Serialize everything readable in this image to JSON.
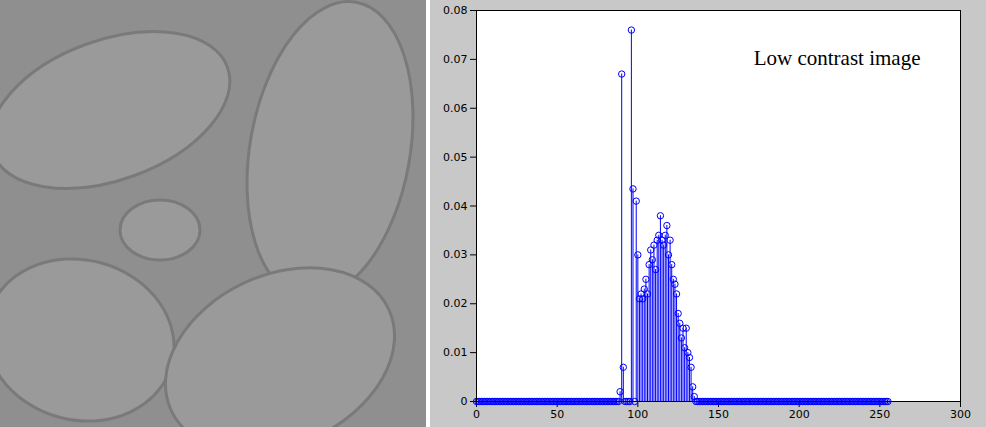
{
  "chart_data": {
    "type": "stem",
    "marker": "circle",
    "color": "#0000ff",
    "grid": false,
    "annotations": [
      {
        "text": "Low contrast image"
      }
    ],
    "xlim": [
      0,
      300
    ],
    "xticks": [
      0,
      50,
      100,
      150,
      200,
      250,
      300
    ],
    "ylim": [
      0,
      0.08
    ],
    "yticks": [
      0,
      0.01,
      0.02,
      0.03,
      0.04,
      0.05,
      0.06,
      0.07,
      0.08
    ],
    "x": [
      0,
      1,
      2,
      3,
      4,
      5,
      6,
      7,
      8,
      9,
      10,
      11,
      12,
      13,
      14,
      15,
      16,
      17,
      18,
      19,
      20,
      21,
      22,
      23,
      24,
      25,
      26,
      27,
      28,
      29,
      30,
      31,
      32,
      33,
      34,
      35,
      36,
      37,
      38,
      39,
      40,
      41,
      42,
      43,
      44,
      45,
      46,
      47,
      48,
      49,
      50,
      51,
      52,
      53,
      54,
      55,
      56,
      57,
      58,
      59,
      60,
      61,
      62,
      63,
      64,
      65,
      66,
      67,
      68,
      69,
      70,
      71,
      72,
      73,
      74,
      75,
      76,
      77,
      78,
      79,
      80,
      81,
      82,
      83,
      84,
      85,
      86,
      87,
      88,
      89,
      90,
      91,
      92,
      93,
      94,
      95,
      96,
      97,
      98,
      99,
      100,
      101,
      102,
      103,
      104,
      105,
      106,
      107,
      108,
      109,
      110,
      111,
      112,
      113,
      114,
      115,
      116,
      117,
      118,
      119,
      120,
      121,
      122,
      123,
      124,
      125,
      126,
      127,
      128,
      129,
      130,
      131,
      132,
      133,
      134,
      135,
      136,
      137,
      138,
      139,
      140,
      141,
      142,
      143,
      144,
      145,
      146,
      147,
      148,
      149,
      150,
      151,
      152,
      153,
      154,
      155,
      156,
      157,
      158,
      159,
      160,
      161,
      162,
      163,
      164,
      165,
      166,
      167,
      168,
      169,
      170,
      171,
      172,
      173,
      174,
      175,
      176,
      177,
      178,
      179,
      180,
      181,
      182,
      183,
      184,
      185,
      186,
      187,
      188,
      189,
      190,
      191,
      192,
      193,
      194,
      195,
      196,
      197,
      198,
      199,
      200,
      201,
      202,
      203,
      204,
      205,
      206,
      207,
      208,
      209,
      210,
      211,
      212,
      213,
      214,
      215,
      216,
      217,
      218,
      219,
      220,
      221,
      222,
      223,
      224,
      225,
      226,
      227,
      228,
      229,
      230,
      231,
      232,
      233,
      234,
      235,
      236,
      237,
      238,
      239,
      240,
      241,
      242,
      243,
      244,
      245,
      246,
      247,
      248,
      249,
      250,
      251,
      252,
      253,
      254,
      255
    ],
    "values": [
      0,
      0,
      0,
      0,
      0,
      0,
      0,
      0,
      0,
      0,
      0,
      0,
      0,
      0,
      0,
      0,
      0,
      0,
      0,
      0,
      0,
      0,
      0,
      0,
      0,
      0,
      0,
      0,
      0,
      0,
      0,
      0,
      0,
      0,
      0,
      0,
      0,
      0,
      0,
      0,
      0,
      0,
      0,
      0,
      0,
      0,
      0,
      0,
      0,
      0,
      0,
      0,
      0,
      0,
      0,
      0,
      0,
      0,
      0,
      0,
      0,
      0,
      0,
      0,
      0,
      0,
      0,
      0,
      0,
      0,
      0,
      0,
      0,
      0,
      0,
      0,
      0,
      0,
      0,
      0,
      0,
      0,
      0,
      0,
      0,
      0,
      0,
      0,
      0,
      0.002,
      0.067,
      0.007,
      0,
      0,
      0,
      0,
      0.076,
      0.0435,
      0,
      0.041,
      0.03,
      0.021,
      0.022,
      0.021,
      0.023,
      0.025,
      0.022,
      0.028,
      0.031,
      0.029,
      0.032,
      0.027,
      0.033,
      0.034,
      0.038,
      0.033,
      0.032,
      0.034,
      0.036,
      0.03,
      0.033,
      0.028,
      0.025,
      0.024,
      0.022,
      0.018,
      0.016,
      0.013,
      0.015,
      0.011,
      0.015,
      0.01,
      0.009,
      0.007,
      0.003,
      0.001,
      0,
      0,
      0,
      0,
      0,
      0,
      0,
      0,
      0,
      0,
      0,
      0,
      0,
      0,
      0,
      0,
      0,
      0,
      0,
      0,
      0,
      0,
      0,
      0,
      0,
      0,
      0,
      0,
      0,
      0,
      0,
      0,
      0,
      0,
      0,
      0,
      0,
      0,
      0,
      0,
      0,
      0,
      0,
      0,
      0,
      0,
      0,
      0,
      0,
      0,
      0,
      0,
      0,
      0,
      0,
      0,
      0,
      0,
      0,
      0,
      0,
      0,
      0,
      0,
      0,
      0,
      0,
      0,
      0,
      0,
      0,
      0,
      0,
      0,
      0,
      0,
      0,
      0,
      0,
      0,
      0,
      0,
      0,
      0,
      0,
      0,
      0,
      0,
      0,
      0,
      0,
      0,
      0,
      0,
      0,
      0,
      0,
      0,
      0,
      0,
      0,
      0,
      0,
      0,
      0,
      0,
      0,
      0,
      0,
      0,
      0,
      0,
      0,
      0,
      0,
      0,
      0,
      0,
      0,
      0
    ]
  }
}
